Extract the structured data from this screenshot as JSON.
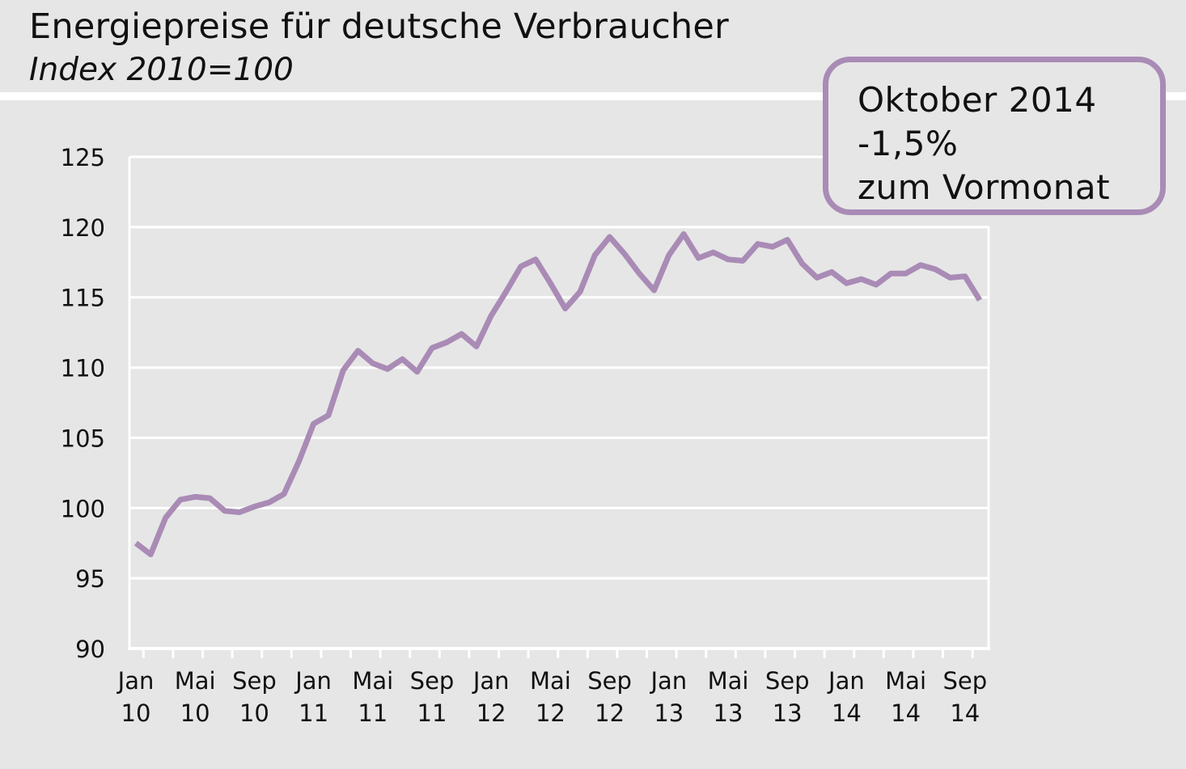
{
  "title": "Energiepreise für deutsche Verbraucher",
  "subtitle": "Index 2010=100",
  "callout": {
    "line1": "Oktober 2014",
    "line2": "-1,5%",
    "line3": "zum Vormonat"
  },
  "colors": {
    "background": "#e6e6e6",
    "line": "#a98bb6",
    "grid": "#ffffff",
    "axis": "#ffffff",
    "text": "#111111"
  },
  "chart_data": {
    "type": "line",
    "title": "Energiepreise für deutsche Verbraucher",
    "subtitle": "Index 2010=100",
    "ylim": [
      90,
      125
    ],
    "yticks": [
      "125",
      "120",
      "115",
      "110",
      "105",
      "100",
      "95",
      "90"
    ],
    "grid": true,
    "xtick_labels": [
      {
        "top": "Jan",
        "bottom": "10"
      },
      {
        "top": "Mai",
        "bottom": "10"
      },
      {
        "top": "Sep",
        "bottom": "10"
      },
      {
        "top": "Jan",
        "bottom": "11"
      },
      {
        "top": "Mai",
        "bottom": "11"
      },
      {
        "top": "Sep",
        "bottom": "11"
      },
      {
        "top": "Jan",
        "bottom": "12"
      },
      {
        "top": "Mai",
        "bottom": "12"
      },
      {
        "top": "Sep",
        "bottom": "12"
      },
      {
        "top": "Jan",
        "bottom": "13"
      },
      {
        "top": "Mai",
        "bottom": "13"
      },
      {
        "top": "Sep",
        "bottom": "13"
      },
      {
        "top": "Jan",
        "bottom": "14"
      },
      {
        "top": "Mai",
        "bottom": "14"
      },
      {
        "top": "Sep",
        "bottom": "14"
      }
    ],
    "x_start": "2010-01",
    "series": [
      {
        "values": [
          97.5,
          96.7,
          99.3,
          100.6,
          100.8,
          100.7,
          99.8,
          99.7,
          100.1,
          100.4,
          101.0,
          103.3,
          106.0,
          106.6,
          109.8,
          111.2,
          110.3,
          109.9,
          110.6,
          109.7,
          111.4,
          111.8,
          112.4,
          111.5,
          113.7,
          115.4,
          117.2,
          117.7,
          116.0,
          114.2,
          115.4,
          118.0,
          119.3,
          118.1,
          116.7,
          115.5,
          118.0,
          119.5,
          117.8,
          118.2,
          117.7,
          117.6,
          118.8,
          118.6,
          119.1,
          117.4,
          116.4,
          116.8,
          116.0,
          116.3,
          115.9,
          116.7,
          116.7,
          117.3,
          117.0,
          116.4,
          116.5,
          114.8
        ]
      }
    ]
  }
}
